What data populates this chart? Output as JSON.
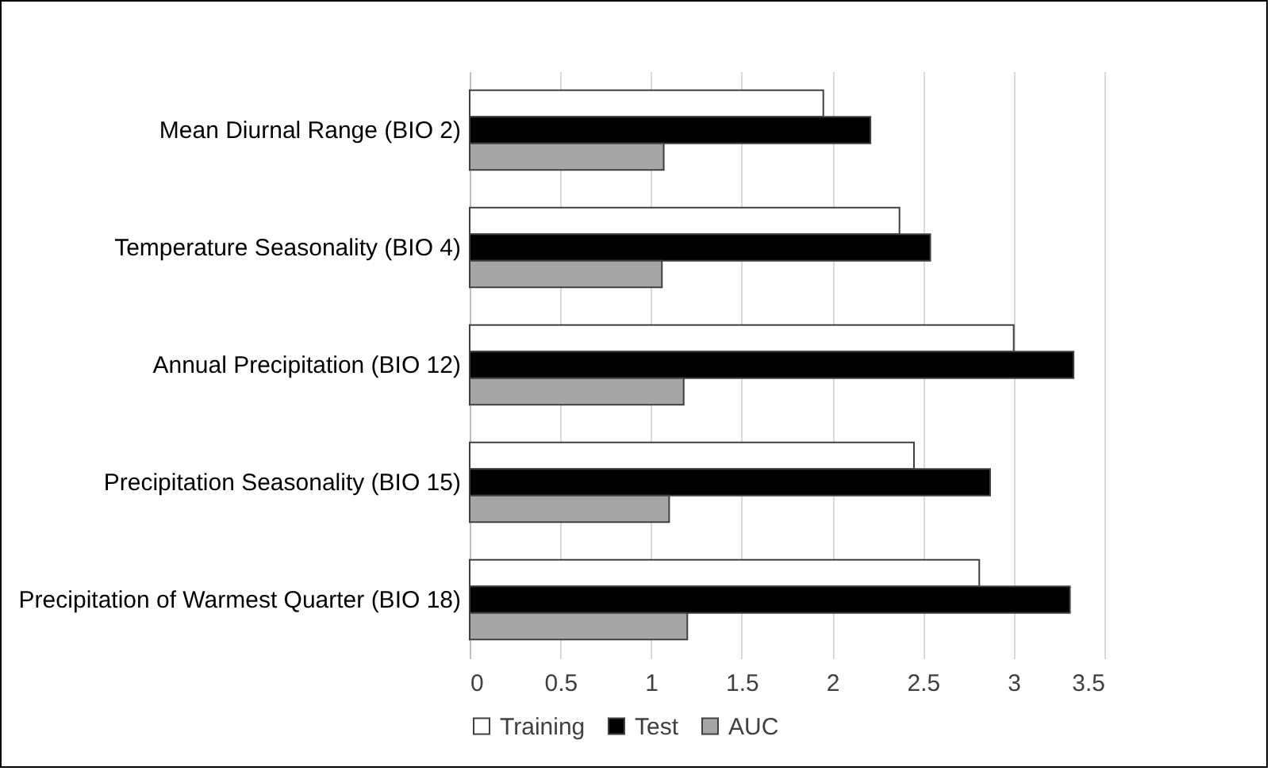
{
  "chart_data": {
    "type": "bar",
    "orientation": "horizontal",
    "categories": [
      "Mean Diurnal Range (BIO 2)",
      "Temperature Seasonality (BIO 4)",
      "Annual Precipitation (BIO 12)",
      "Precipitation Seasonality (BIO 15)",
      "Precipitation of Warmest Quarter (BIO 18)"
    ],
    "series": [
      {
        "name": "Training",
        "color": "#ffffff",
        "values": [
          1.95,
          2.37,
          3.0,
          2.45,
          2.81
        ]
      },
      {
        "name": "Test",
        "color": "#000000",
        "values": [
          2.21,
          2.54,
          3.33,
          2.87,
          3.31
        ]
      },
      {
        "name": "AUC",
        "color": "#a6a6a6",
        "values": [
          1.07,
          1.06,
          1.18,
          1.1,
          1.2
        ]
      }
    ],
    "xlim": [
      0,
      3.5
    ],
    "xticks": [
      0,
      0.5,
      1,
      1.5,
      2,
      2.5,
      3,
      3.5
    ],
    "grid": "x",
    "legend": "bottom"
  }
}
